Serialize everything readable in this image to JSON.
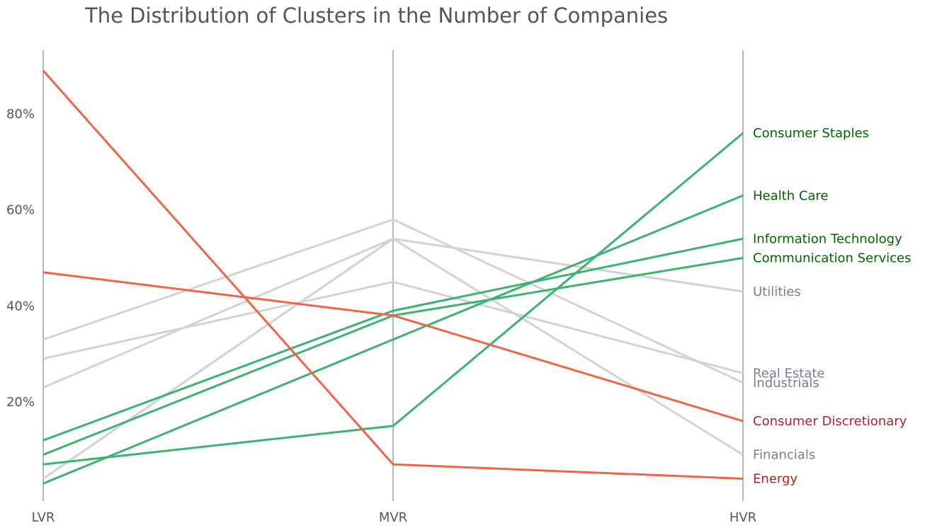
{
  "chart_data": {
    "type": "line",
    "title": "The Distribution of Clusters in the Number of Companies",
    "x": [
      "LVR",
      "MVR",
      "HVR"
    ],
    "y_ticks": [
      "20%",
      "40%",
      "60%",
      "80%"
    ],
    "ylim": [
      0,
      90
    ],
    "grid": "vertical axis lines only",
    "colors": {
      "decrease": "#f0654a",
      "increase": "#3cb371",
      "neutral": "#d3d3d3",
      "label_decrease": "#b22222",
      "label_increase": "#006400",
      "label_neutral": "#708090"
    },
    "series": [
      {
        "name": "Consumer Staples",
        "group": "increase",
        "values": [
          7,
          15,
          76
        ]
      },
      {
        "name": "Health Care",
        "group": "increase",
        "values": [
          3,
          33,
          63
        ]
      },
      {
        "name": "Information Technology",
        "group": "increase",
        "values": [
          12,
          39,
          54
        ]
      },
      {
        "name": "Communication Services",
        "group": "increase",
        "values": [
          9,
          38,
          50
        ]
      },
      {
        "name": "Utilities",
        "group": "neutral",
        "values": [
          23,
          54,
          43
        ]
      },
      {
        "name": "Utilities",
        "group": "neutral",
        "values": [
          4,
          54,
          43
        ]
      },
      {
        "name": "Real Estate",
        "group": "neutral",
        "values": [
          29,
          45,
          26
        ]
      },
      {
        "name": "Industrials",
        "group": "neutral",
        "values": [
          33,
          58,
          24
        ]
      },
      {
        "name": "Financials",
        "group": "neutral",
        "values": [
          4,
          54,
          9
        ]
      },
      {
        "name": "Consumer Discretionary",
        "group": "decrease",
        "values": [
          47,
          38,
          16
        ]
      },
      {
        "name": "Energy",
        "group": "decrease",
        "values": [
          89,
          7,
          4
        ]
      }
    ]
  }
}
